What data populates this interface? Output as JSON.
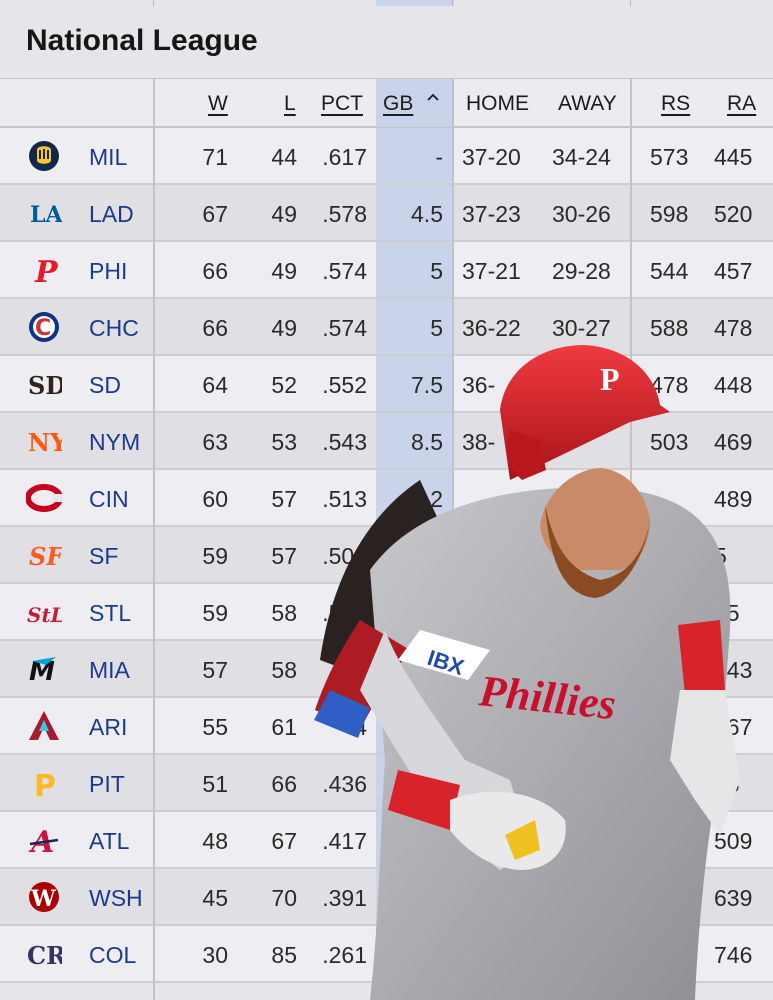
{
  "title": "National League",
  "columns": {
    "w": "W",
    "l": "L",
    "pct": "PCT",
    "gb": "GB",
    "home": "HOME",
    "away": "AWAY",
    "rs": "RS",
    "ra": "RA"
  },
  "rows": [
    {
      "team": "MIL",
      "logo": "brewers-glove-icon",
      "w": "71",
      "l": "44",
      "pct": ".617",
      "gb": "-",
      "home": "37-20",
      "away": "34-24",
      "rs": "573",
      "ra": "445"
    },
    {
      "team": "LAD",
      "logo": "dodgers-la-icon",
      "w": "67",
      "l": "49",
      "pct": ".578",
      "gb": "4.5",
      "home": "37-23",
      "away": "30-26",
      "rs": "598",
      "ra": "520"
    },
    {
      "team": "PHI",
      "logo": "phillies-p-icon",
      "w": "66",
      "l": "49",
      "pct": ".574",
      "gb": "5",
      "home": "37-21",
      "away": "29-28",
      "rs": "544",
      "ra": "457"
    },
    {
      "team": "CHC",
      "logo": "cubs-c-icon",
      "w": "66",
      "l": "49",
      "pct": ".574",
      "gb": "5",
      "home": "36-22",
      "away": "30-27",
      "rs": "588",
      "ra": "478"
    },
    {
      "team": "SD",
      "logo": "padres-sd-icon",
      "w": "64",
      "l": "52",
      "pct": ".552",
      "gb": "7.5",
      "home": "36-",
      "away": "",
      "rs": "478",
      "ra": "448"
    },
    {
      "team": "NYM",
      "logo": "mets-ny-icon",
      "w": "63",
      "l": "53",
      "pct": ".543",
      "gb": "8.5",
      "home": "38-",
      "away": "",
      "rs": "503",
      "ra": "469"
    },
    {
      "team": "CIN",
      "logo": "reds-c-icon",
      "w": "60",
      "l": "57",
      "pct": ".513",
      "gb": "12",
      "home": "",
      "away": "",
      "rs": "",
      "ra": "489"
    },
    {
      "team": "SF",
      "logo": "giants-sf-icon",
      "w": "59",
      "l": "57",
      "pct": ".509",
      "gb": "1",
      "home": "",
      "away": "",
      "rs": "",
      "ra": "5"
    },
    {
      "team": "STL",
      "logo": "cardinals-stl-icon",
      "w": "59",
      "l": "58",
      "pct": ".504",
      "gb": "",
      "home": "",
      "away": "",
      "rs": "",
      "ra": "25"
    },
    {
      "team": "MIA",
      "logo": "marlins-m-icon",
      "w": "57",
      "l": "58",
      "pct": ".4",
      "gb": "",
      "home": "",
      "away": "",
      "rs": "49",
      "ra": "543"
    },
    {
      "team": "ARI",
      "logo": "diamondbacks-a-icon",
      "w": "55",
      "l": "61",
      "pct": ".4",
      "gb": "",
      "home": "",
      "away": "",
      "rs": "56",
      "ra": "567"
    },
    {
      "team": "PIT",
      "logo": "pirates-p-icon",
      "w": "51",
      "l": "66",
      "pct": ".436",
      "gb": "",
      "home": "",
      "away": "",
      "rs": "41",
      "ra": "68"
    },
    {
      "team": "ATL",
      "logo": "braves-a-icon",
      "w": "48",
      "l": "67",
      "pct": ".417",
      "gb": "",
      "home": "",
      "away": "",
      "rs": "77",
      "ra": "509"
    },
    {
      "team": "WSH",
      "logo": "nationals-w-icon",
      "w": "45",
      "l": "70",
      "pct": ".391",
      "gb": "",
      "home": "",
      "away": "",
      "rs": "6",
      "ra": "639"
    },
    {
      "team": "COL",
      "logo": "rockies-cr-icon",
      "w": "30",
      "l": "85",
      "pct": ".261",
      "gb": "",
      "home": "2",
      "away": "14",
      "rs": "",
      "ra": "746"
    }
  ],
  "overlay": {
    "helmet_letter": "P",
    "jersey_text": "Phillies",
    "patch_text": "IBX"
  },
  "colors": {
    "team_link": "#1b3a8c",
    "gb_highlight": "#c9d3ea",
    "phillies_red": "#d8232a"
  }
}
